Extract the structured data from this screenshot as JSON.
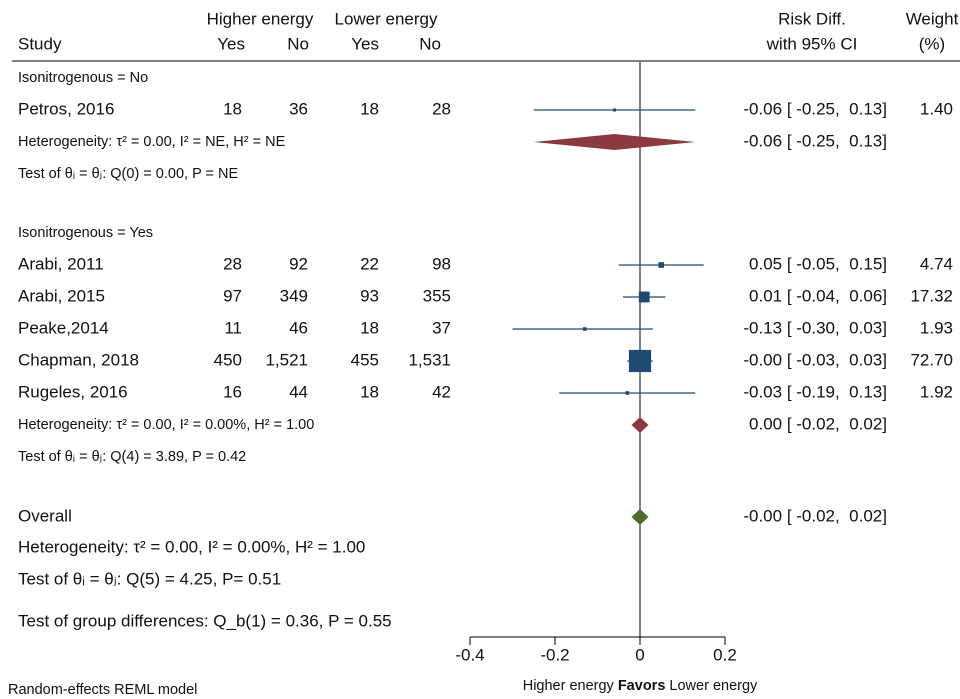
{
  "chart_data": {
    "type": "forest",
    "headers": {
      "group1": "Higher energy",
      "group2": "Lower energy",
      "study": "Study",
      "yes1": "Yes",
      "no1": "No",
      "yes2": "Yes",
      "no2": "No",
      "effect1": "Risk Diff.",
      "effect2": "with 95% CI",
      "weight1": "Weight",
      "weight2": "(%)"
    },
    "subgroups": [
      {
        "label": "Isonitrogenous = No",
        "studies": [
          {
            "name": "Petros, 2016",
            "counts": [
              18,
              36,
              18,
              28
            ],
            "estimate": -0.06,
            "ci": [
              -0.25,
              0.13
            ],
            "ci_label": "-0.06 [ -0.25,  0.13]",
            "weight": {
              "value": 1.4,
              "label": "1.40"
            }
          }
        ],
        "summary": {
          "estimate": -0.06,
          "ci": [
            -0.25,
            0.13
          ],
          "ci_label": "-0.06 [ -0.25,  0.13]",
          "color": "#8b3a3f"
        },
        "heterogeneity": "Heterogeneity: τ² = 0.00, I² = NE, H² = NE",
        "test": "Test of θᵢ = θⱼ: Q(0) = 0.00, P = NE"
      },
      {
        "label": "Isonitrogenous = Yes",
        "studies": [
          {
            "name": "Arabi, 2011",
            "counts": [
              28,
              92,
              22,
              98
            ],
            "estimate": 0.05,
            "ci": [
              -0.05,
              0.15
            ],
            "ci_label": "0.05 [ -0.05,  0.15]",
            "weight": 4.74
          },
          {
            "name": "Arabi, 2015",
            "counts": [
              97,
              349,
              93,
              355
            ],
            "estimate": 0.01,
            "ci": [
              -0.04,
              0.06
            ],
            "ci_label": "0.01 [ -0.04,  0.06]",
            "weight": 17.32
          },
          {
            "name": "Peake,2014",
            "counts": [
              11,
              46,
              18,
              37
            ],
            "estimate": -0.13,
            "ci": [
              -0.3,
              0.03
            ],
            "ci_label": "-0.13 [ -0.30,  0.03]",
            "weight": 1.93
          },
          {
            "name": "Chapman, 2018",
            "counts": [
              450,
              {
                "value": 1521,
                "label": "1,521"
              },
              455,
              {
                "value": 1531,
                "label": "1,531"
              }
            ],
            "estimate": 0,
            "ci": [
              -0.03,
              0.03
            ],
            "ci_label": "-0.00 [ -0.03,  0.03]",
            "weight": {
              "value": 72.7,
              "label": "72.70"
            }
          },
          {
            "name": "Rugeles, 2016",
            "counts": [
              16,
              44,
              18,
              42
            ],
            "estimate": -0.03,
            "ci": [
              -0.19,
              0.13
            ],
            "ci_label": "-0.03 [ -0.19,  0.13]",
            "weight": 1.92
          }
        ],
        "summary": {
          "estimate": 0,
          "ci": [
            -0.02,
            0.02
          ],
          "ci_label": "0.00 [ -0.02,  0.02]",
          "color": "#8b3a3f"
        },
        "heterogeneity": "Heterogeneity: τ² = 0.00, I² = 0.00%, H² = 1.00",
        "test": "Test of θᵢ = θⱼ: Q(4) = 3.89, P = 0.42"
      }
    ],
    "overall": {
      "label": "Overall",
      "estimate": 0,
      "ci": [
        -0.02,
        0.02
      ],
      "ci_label": "-0.00 [ -0.02,  0.02]",
      "color": "#4e6b2e",
      "heterogeneity": "Heterogeneity: τ² = 0.00, I² = 0.00%, H² = 1.00",
      "test": "Test of θᵢ = θⱼ: Q(5) = 4.25, P= 0.51"
    },
    "group_test": "Test of group differences: Q_b(1) = 0.36, P = 0.55",
    "xlim": [
      -0.4,
      0.2
    ],
    "xticks": [
      -0.4,
      -0.2,
      0,
      0.2
    ],
    "x_label": [
      "Higher energy",
      "Favors",
      "Lower energy"
    ],
    "note": "Random-effects REML model",
    "marker_color": "#1f4b73"
  }
}
